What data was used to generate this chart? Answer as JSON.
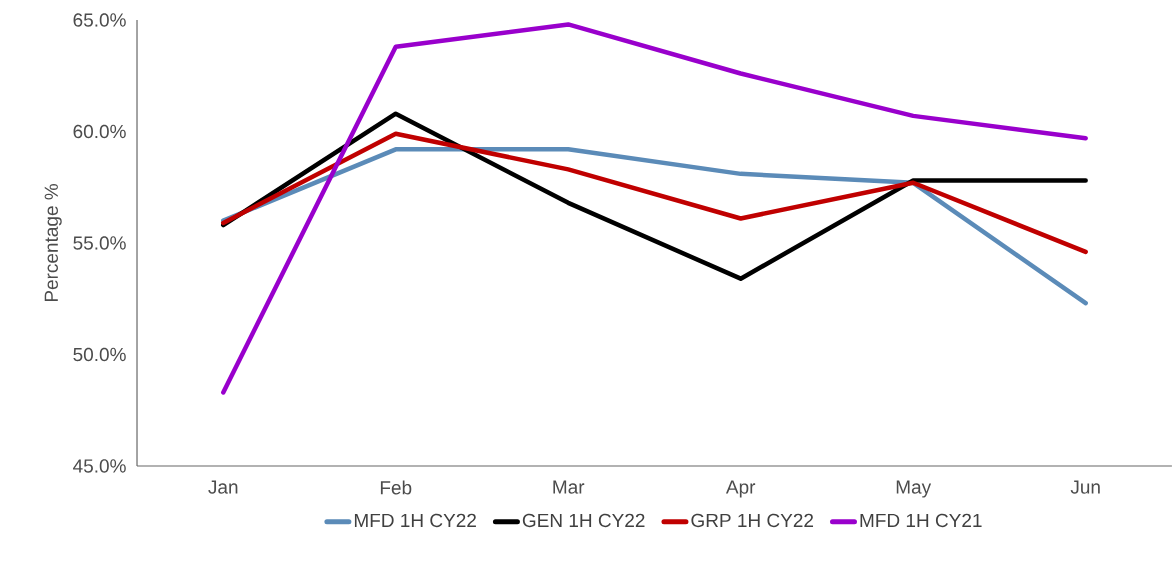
{
  "chart_data": {
    "type": "line",
    "ylabel": "Percentage %",
    "categories": [
      "Jan",
      "Feb",
      "Mar",
      "Apr",
      "May",
      "Jun"
    ],
    "series": [
      {
        "name": "MFD 1H CY22",
        "color": "#5b8bb8",
        "values": [
          56.0,
          59.2,
          59.2,
          58.1,
          57.7,
          52.3
        ]
      },
      {
        "name": "GEN 1H CY22",
        "color": "#000000",
        "values": [
          55.8,
          60.8,
          56.8,
          53.4,
          57.8,
          57.8
        ]
      },
      {
        "name": "GRP 1H CY22",
        "color": "#c00000",
        "values": [
          55.9,
          59.9,
          58.3,
          56.1,
          57.7,
          54.6
        ]
      },
      {
        "name": "MFD 1H CY21",
        "color": "#9900cc",
        "values": [
          48.3,
          63.8,
          64.8,
          62.6,
          60.7,
          59.7
        ]
      }
    ],
    "ylim": [
      45,
      65
    ],
    "yticks": [
      {
        "value": 45,
        "label": "45.0%"
      },
      {
        "value": 50,
        "label": "50.0%"
      },
      {
        "value": 55,
        "label": "55.0%"
      },
      {
        "value": 60,
        "label": "60.0%"
      },
      {
        "value": 65,
        "label": "65.0%"
      }
    ],
    "grid": false,
    "legend": "bottom",
    "marker": "none",
    "line_style": "solid"
  }
}
